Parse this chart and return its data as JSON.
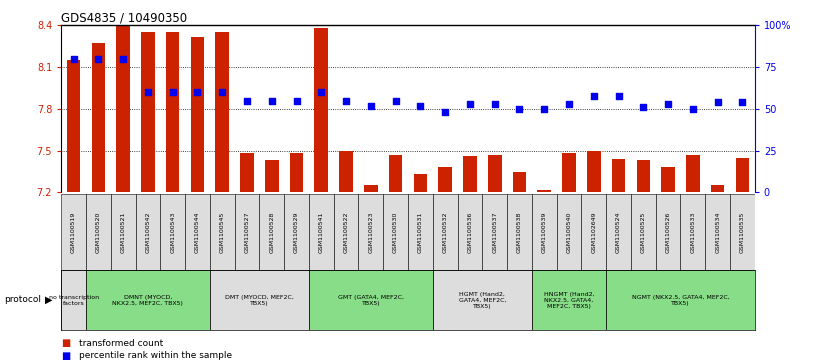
{
  "title": "GDS4835 / 10490350",
  "samples": [
    "GSM1100519",
    "GSM1100520",
    "GSM1100521",
    "GSM1100542",
    "GSM1100543",
    "GSM1100544",
    "GSM1100545",
    "GSM1100527",
    "GSM1100528",
    "GSM1100529",
    "GSM1100541",
    "GSM1100522",
    "GSM1100523",
    "GSM1100530",
    "GSM1100531",
    "GSM1100532",
    "GSM1100536",
    "GSM1100537",
    "GSM1100538",
    "GSM1100539",
    "GSM1100540",
    "GSM1102649",
    "GSM1100524",
    "GSM1100525",
    "GSM1100526",
    "GSM1100533",
    "GSM1100534",
    "GSM1100535"
  ],
  "bar_values": [
    8.15,
    8.27,
    8.4,
    8.35,
    8.35,
    8.32,
    8.35,
    7.48,
    7.43,
    7.48,
    8.38,
    7.5,
    7.25,
    7.47,
    7.33,
    7.38,
    7.46,
    7.47,
    7.35,
    7.22,
    7.48,
    7.5,
    7.44,
    7.43,
    7.38,
    7.47,
    7.25,
    7.45
  ],
  "percentile_values": [
    80,
    80,
    80,
    60,
    60,
    60,
    60,
    55,
    55,
    55,
    60,
    55,
    52,
    55,
    52,
    48,
    53,
    53,
    50,
    50,
    53,
    58,
    58,
    51,
    53,
    50,
    54,
    54
  ],
  "ylim": [
    7.2,
    8.4
  ],
  "yticks": [
    7.2,
    7.5,
    7.8,
    8.1,
    8.4
  ],
  "right_ylim": [
    0,
    100
  ],
  "right_yticks": [
    0,
    25,
    50,
    75,
    100
  ],
  "right_yticklabels": [
    "0",
    "25",
    "50",
    "75",
    "100%"
  ],
  "bar_color": "#CC2200",
  "dot_color": "#0000EE",
  "bar_bottom": 7.2,
  "protocol_groups": [
    {
      "label": "no transcription\nfactors",
      "start": 0,
      "end": 1,
      "color": "#DDDDDD"
    },
    {
      "label": "DMNT (MYOCD,\nNKX2.5, MEF2C, TBX5)",
      "start": 1,
      "end": 6,
      "color": "#88DD88"
    },
    {
      "label": "DMT (MYOCD, MEF2C,\nTBX5)",
      "start": 6,
      "end": 10,
      "color": "#DDDDDD"
    },
    {
      "label": "GMT (GATA4, MEF2C,\nTBX5)",
      "start": 10,
      "end": 15,
      "color": "#88DD88"
    },
    {
      "label": "HGMT (Hand2,\nGATA4, MEF2C,\nTBX5)",
      "start": 15,
      "end": 19,
      "color": "#DDDDDD"
    },
    {
      "label": "HNGMT (Hand2,\nNKX2.5, GATA4,\nMEF2C, TBX5)",
      "start": 19,
      "end": 22,
      "color": "#88DD88"
    },
    {
      "label": "NGMT (NKX2.5, GATA4, MEF2C,\nTBX5)",
      "start": 22,
      "end": 28,
      "color": "#88DD88"
    }
  ]
}
